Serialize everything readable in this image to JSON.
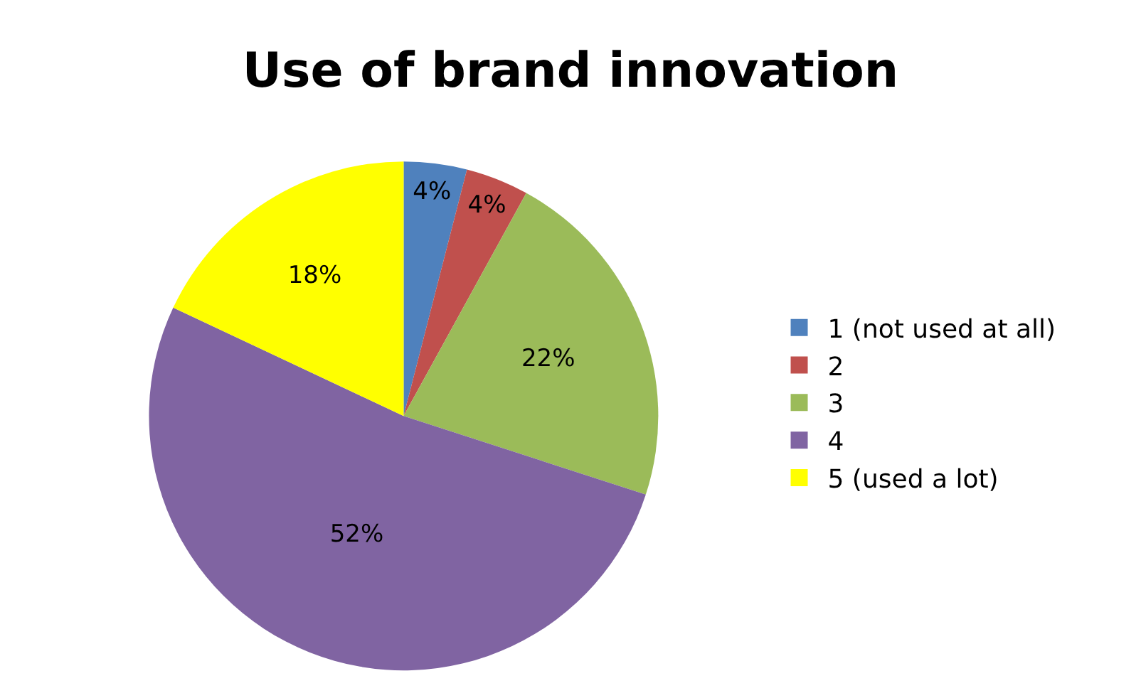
{
  "chart_data": {
    "type": "pie",
    "title": "Use of brand innovation",
    "categories": [
      "1 (not used at all)",
      "2",
      "3",
      "4",
      "5 (used a lot)"
    ],
    "values": [
      4,
      4,
      22,
      52,
      18
    ],
    "value_labels": [
      "4%",
      "4%",
      "22%",
      "52%",
      "18%"
    ],
    "colors": [
      "#4f81bd",
      "#c0504d",
      "#9bbb59",
      "#8064a2",
      "#ffff00"
    ],
    "legend": "right"
  }
}
